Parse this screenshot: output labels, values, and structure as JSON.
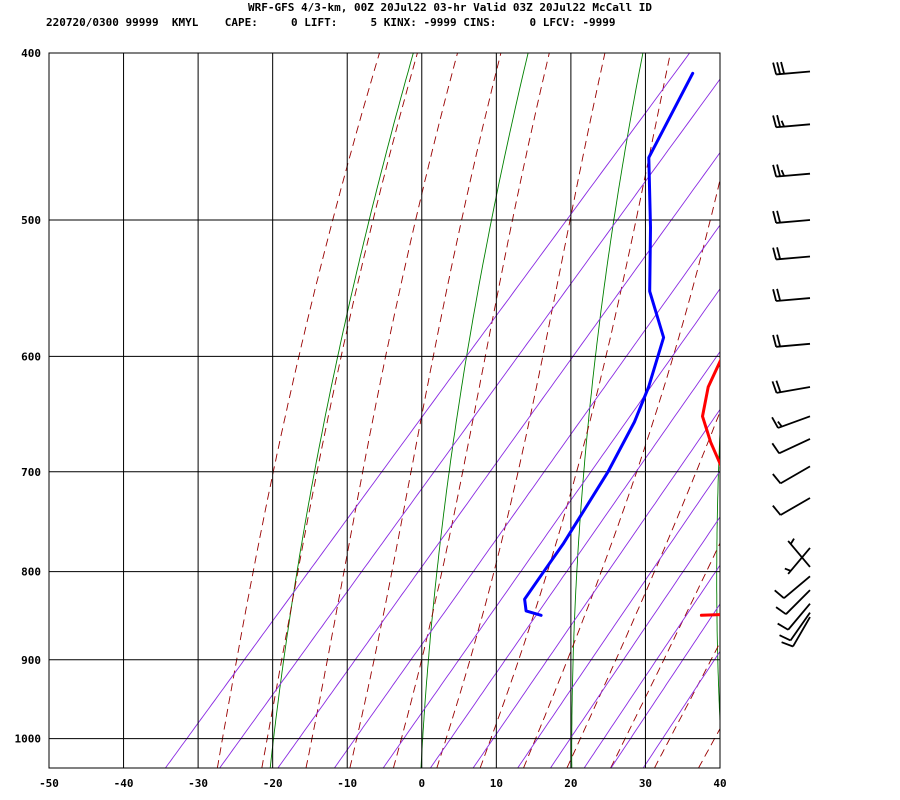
{
  "header": {
    "title": "WRF-GFS 4/3-km, 00Z 20Jul22 03-hr Valid 03Z 20Jul22 McCall ID",
    "station_line": "220720/0300 99999  KMYL    CAPE:     0 LIFT:     5 KINX: -9999 CINS:     0 LFCV: -9999"
  },
  "colors": {
    "temperature": "#ff0000",
    "dewpoint": "#0000ff",
    "dry_adiabat": "#008000",
    "moist_adiabat": "#990000",
    "mixing_ratio": "#8a2be2",
    "grid": "#000000",
    "barb": "#000000"
  },
  "chart_data": {
    "type": "line",
    "chart_kind": "skew-T log-P sounding",
    "title": "WRF-GFS 4/3-km, 00Z 20Jul22 03-hr Valid 03Z 20Jul22 McCall ID",
    "xlabel": "",
    "ylabel": "",
    "xlim": [
      -50,
      40
    ],
    "ylim": [
      1040,
      400
    ],
    "y_scale": "log",
    "grid": true,
    "x_ticks": [
      -50,
      -40,
      -30,
      -20,
      -10,
      0,
      10,
      20,
      30,
      40
    ],
    "pressure_ticks": [
      400,
      500,
      600,
      700,
      800,
      900,
      1000
    ],
    "series": [
      {
        "key": "temperature",
        "color": "#ff0000",
        "points": [
          {
            "p": 848,
            "t": 20.5
          },
          {
            "p": 847,
            "t": 23.5
          },
          {
            "p": 842,
            "t": 25.5
          },
          {
            "p": 830,
            "t": 24.5
          },
          {
            "p": 812,
            "t": 22.0
          },
          {
            "p": 797,
            "t": 20.5
          },
          {
            "p": 770,
            "t": 17.5
          },
          {
            "p": 741,
            "t": 14.5
          },
          {
            "p": 700,
            "t": 7.5
          },
          {
            "p": 673,
            "t": 2.5
          },
          {
            "p": 650,
            "t": -1.5
          },
          {
            "p": 625,
            "t": -4.0
          },
          {
            "p": 600,
            "t": -5.5
          },
          {
            "p": 550,
            "t": -9.5
          },
          {
            "p": 500,
            "t": -12.5
          },
          {
            "p": 460,
            "t": -14.0
          },
          {
            "p": 411,
            "t": -16.5
          }
        ]
      },
      {
        "key": "dewpoint",
        "color": "#0000ff",
        "points": [
          {
            "p": 848,
            "t": -1.0
          },
          {
            "p": 843,
            "t": -3.5
          },
          {
            "p": 830,
            "t": -5.0
          },
          {
            "p": 800,
            "t": -5.5
          },
          {
            "p": 770,
            "t": -6.0
          },
          {
            "p": 700,
            "t": -8.0
          },
          {
            "p": 655,
            "t": -10.0
          },
          {
            "p": 625,
            "t": -12.0
          },
          {
            "p": 585,
            "t": -15.5
          },
          {
            "p": 550,
            "t": -22.5
          },
          {
            "p": 505,
            "t": -29.5
          },
          {
            "p": 460,
            "t": -37.5
          },
          {
            "p": 411,
            "t": -41.0
          }
        ]
      }
    ],
    "wind_barbs": [
      {
        "p": 410,
        "dir": 265,
        "kt": 30
      },
      {
        "p": 440,
        "dir": 265,
        "kt": 25
      },
      {
        "p": 470,
        "dir": 265,
        "kt": 25
      },
      {
        "p": 500,
        "dir": 265,
        "kt": 20
      },
      {
        "p": 525,
        "dir": 265,
        "kt": 20
      },
      {
        "p": 555,
        "dir": 265,
        "kt": 20
      },
      {
        "p": 590,
        "dir": 265,
        "kt": 20
      },
      {
        "p": 625,
        "dir": 260,
        "kt": 20
      },
      {
        "p": 650,
        "dir": 250,
        "kt": 15
      },
      {
        "p": 670,
        "dir": 245,
        "kt": 10
      },
      {
        "p": 695,
        "dir": 240,
        "kt": 10
      },
      {
        "p": 725,
        "dir": 240,
        "kt": 10
      },
      {
        "p": 775,
        "dir": 220,
        "kt": 5
      },
      {
        "p": 795,
        "dir": 320,
        "kt": 5
      },
      {
        "p": 805,
        "dir": 230,
        "kt": 10
      },
      {
        "p": 820,
        "dir": 225,
        "kt": 10
      },
      {
        "p": 835,
        "dir": 220,
        "kt": 10
      },
      {
        "p": 845,
        "dir": 215,
        "kt": 10
      },
      {
        "p": 850,
        "dir": 210,
        "kt": 10
      }
    ]
  }
}
